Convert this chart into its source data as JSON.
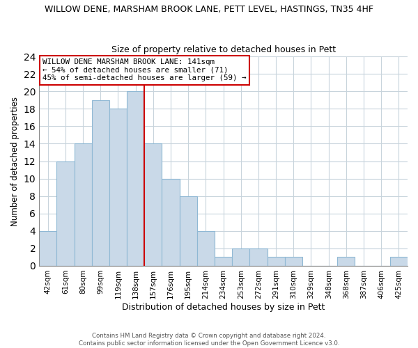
{
  "title1": "WILLOW DENE, MARSHAM BROOK LANE, PETT LEVEL, HASTINGS, TN35 4HF",
  "title2": "Size of property relative to detached houses in Pett",
  "xlabel": "Distribution of detached houses by size in Pett",
  "ylabel": "Number of detached properties",
  "bar_labels": [
    "42sqm",
    "61sqm",
    "80sqm",
    "99sqm",
    "119sqm",
    "138sqm",
    "157sqm",
    "176sqm",
    "195sqm",
    "214sqm",
    "234sqm",
    "253sqm",
    "272sqm",
    "291sqm",
    "310sqm",
    "329sqm",
    "348sqm",
    "368sqm",
    "387sqm",
    "406sqm",
    "425sqm"
  ],
  "bar_heights": [
    4,
    12,
    14,
    19,
    18,
    20,
    14,
    10,
    8,
    4,
    1,
    2,
    2,
    1,
    1,
    0,
    0,
    1,
    0,
    0,
    1
  ],
  "bar_color": "#c9d9e8",
  "bar_edgecolor": "#8fb8d4",
  "vline_x": 5.5,
  "vline_color": "#cc0000",
  "annotation_text": "WILLOW DENE MARSHAM BROOK LANE: 141sqm\n← 54% of detached houses are smaller (71)\n45% of semi-detached houses are larger (59) →",
  "annotation_box_edgecolor": "#cc0000",
  "ylim": [
    0,
    24
  ],
  "yticks": [
    0,
    2,
    4,
    6,
    8,
    10,
    12,
    14,
    16,
    18,
    20,
    22,
    24
  ],
  "footnote1": "Contains HM Land Registry data © Crown copyright and database right 2024.",
  "footnote2": "Contains public sector information licensed under the Open Government Licence v3.0.",
  "background_color": "#ffffff",
  "grid_color": "#c8d4dc"
}
